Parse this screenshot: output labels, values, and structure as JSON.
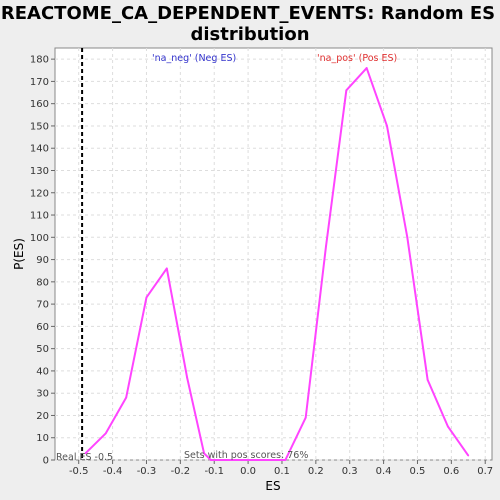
{
  "chart_data": {
    "type": "line",
    "title_line1": "REACTOME_CA_DEPENDENT_EVENTS: Random ES",
    "title_line2": "distribution",
    "xlabel": "ES",
    "ylabel": "P(ES)",
    "xlim": [
      -0.57,
      0.72
    ],
    "ylim": [
      0,
      185
    ],
    "xticks": [
      -0.5,
      -0.4,
      -0.3,
      -0.2,
      -0.1,
      0.0,
      0.1,
      0.2,
      0.3,
      0.4,
      0.5,
      0.6,
      0.7
    ],
    "xtick_labels": [
      "-0.5",
      "-0.4",
      "-0.3",
      "-0.2",
      "-0.1",
      "0.0",
      "0.1",
      "0.2",
      "0.3",
      "0.4",
      "0.5",
      "0.6",
      "0.7"
    ],
    "yticks": [
      0,
      10,
      20,
      30,
      40,
      50,
      60,
      70,
      80,
      90,
      100,
      110,
      120,
      130,
      140,
      150,
      160,
      170,
      180
    ],
    "grid": true,
    "series": [
      {
        "color": "#ff44ff",
        "x": [
          -0.48,
          -0.42,
          -0.36,
          -0.3,
          -0.24,
          -0.18,
          -0.13,
          -0.11,
          0.11,
          0.17,
          0.23,
          0.29,
          0.35,
          0.41,
          0.47,
          0.53,
          0.59,
          0.65
        ],
        "y": [
          3,
          12,
          28,
          73,
          86,
          37,
          3,
          0,
          0,
          19,
          96,
          166,
          176,
          150,
          100,
          36,
          15,
          2
        ]
      }
    ],
    "real_es_line": {
      "x": -0.49,
      "color": "#000000",
      "style": "dashed"
    },
    "annotations": {
      "neg_label": "'na_neg' (Neg ES)",
      "neg_color": "#3333cc",
      "pos_label": "'na_pos' (Pos ES)",
      "pos_color": "#e03030",
      "real_es": "Real ES -0.5",
      "sets_pos": "Sets with pos scores: 76%"
    }
  }
}
